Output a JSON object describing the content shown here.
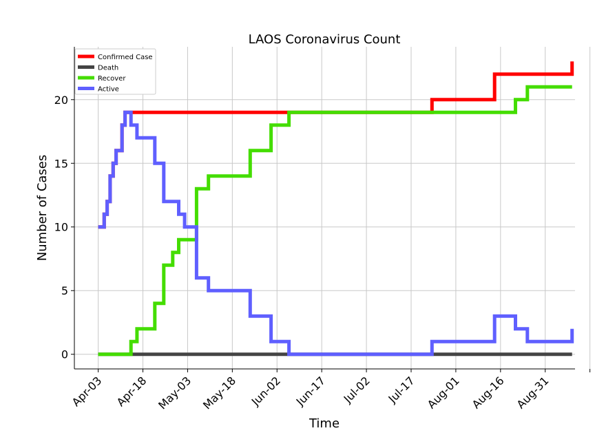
{
  "chart_data": {
    "type": "line",
    "title": "LAOS Coronavirus Count",
    "xlabel": "Time",
    "ylabel": "Number of Cases",
    "x_tick_labels": [
      "Apr-03",
      "Apr-18",
      "May-03",
      "May-18",
      "Jun-02",
      "Jun-17",
      "Jul-02",
      "Jul-17",
      "Aug-01",
      "Aug-16",
      "Aug-31"
    ],
    "y_ticks": [
      0,
      5,
      10,
      15,
      20
    ],
    "xlim": [
      "2020-03-26",
      "2020-09-10"
    ],
    "ylim": [
      -1.15,
      24.15
    ],
    "grid": true,
    "legend_position": "top-left",
    "line_style": "steps",
    "series": [
      {
        "name": "Confirmed Case",
        "color": "#ff0000",
        "points": [
          [
            "2020-04-03",
            10
          ],
          [
            "2020-04-05",
            11
          ],
          [
            "2020-04-06",
            12
          ],
          [
            "2020-04-07",
            14
          ],
          [
            "2020-04-08",
            15
          ],
          [
            "2020-04-09",
            16
          ],
          [
            "2020-04-11",
            18
          ],
          [
            "2020-04-12",
            19
          ],
          [
            "2020-07-24",
            20
          ],
          [
            "2020-08-14",
            22
          ],
          [
            "2020-09-09",
            23
          ]
        ]
      },
      {
        "name": "Death",
        "color": "#444444",
        "points": [
          [
            "2020-04-03",
            0
          ],
          [
            "2020-09-09",
            0
          ]
        ]
      },
      {
        "name": "Recover",
        "color": "#44dd00",
        "points": [
          [
            "2020-04-03",
            0
          ],
          [
            "2020-04-14",
            1
          ],
          [
            "2020-04-16",
            2
          ],
          [
            "2020-04-22",
            4
          ],
          [
            "2020-04-25",
            7
          ],
          [
            "2020-04-28",
            8
          ],
          [
            "2020-04-30",
            9
          ],
          [
            "2020-05-06",
            13
          ],
          [
            "2020-05-10",
            14
          ],
          [
            "2020-05-24",
            16
          ],
          [
            "2020-05-31",
            18
          ],
          [
            "2020-06-06",
            19
          ],
          [
            "2020-08-21",
            20
          ],
          [
            "2020-08-25",
            21
          ],
          [
            "2020-09-09",
            21
          ]
        ]
      },
      {
        "name": "Active",
        "color": "#5f5fff",
        "points": [
          [
            "2020-04-03",
            10
          ],
          [
            "2020-04-05",
            11
          ],
          [
            "2020-04-06",
            12
          ],
          [
            "2020-04-07",
            14
          ],
          [
            "2020-04-08",
            15
          ],
          [
            "2020-04-09",
            16
          ],
          [
            "2020-04-11",
            18
          ],
          [
            "2020-04-12",
            19
          ],
          [
            "2020-04-14",
            18
          ],
          [
            "2020-04-16",
            17
          ],
          [
            "2020-04-22",
            15
          ],
          [
            "2020-04-25",
            12
          ],
          [
            "2020-04-30",
            11
          ],
          [
            "2020-05-02",
            10
          ],
          [
            "2020-05-06",
            6
          ],
          [
            "2020-05-10",
            5
          ],
          [
            "2020-05-24",
            3
          ],
          [
            "2020-05-31",
            1
          ],
          [
            "2020-06-06",
            0
          ],
          [
            "2020-07-24",
            1
          ],
          [
            "2020-08-14",
            3
          ],
          [
            "2020-08-21",
            2
          ],
          [
            "2020-08-25",
            1
          ],
          [
            "2020-09-09",
            2
          ]
        ]
      }
    ]
  }
}
